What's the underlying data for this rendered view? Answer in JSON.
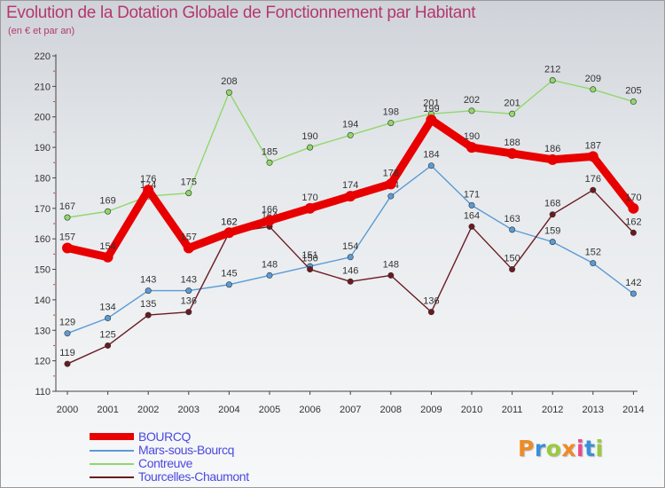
{
  "chart_data": {
    "type": "line",
    "title": "Evolution de la Dotation Globale de Fonctionnement par Habitant",
    "subtitle": "(en € et par an)",
    "xlabel": "",
    "ylabel": "",
    "categories": [
      "2000",
      "2001",
      "2002",
      "2003",
      "2004",
      "2005",
      "2006",
      "2007",
      "2008",
      "2009",
      "2010",
      "2011",
      "2012",
      "2013",
      "2014"
    ],
    "ylim": [
      110,
      220
    ],
    "yticks": [
      110,
      120,
      130,
      140,
      150,
      160,
      170,
      180,
      190,
      200,
      210,
      220
    ],
    "grid": false,
    "legend_position": "bottom-left",
    "series": [
      {
        "name": "BOURCQ",
        "color": "#e80000",
        "values": [
          157,
          154,
          176,
          157,
          162,
          166,
          170,
          174,
          178,
          199,
          190,
          188,
          186,
          187,
          170
        ]
      },
      {
        "name": "Mars-sous-Bourcq",
        "color": "#5b9bd5",
        "values": [
          129,
          134,
          143,
          143,
          145,
          148,
          151,
          154,
          174,
          184,
          171,
          163,
          159,
          152,
          142
        ]
      },
      {
        "name": "Contreuve",
        "color": "#8fd86a",
        "values": [
          167,
          169,
          174,
          175,
          208,
          185,
          190,
          194,
          198,
          201,
          202,
          201,
          212,
          209,
          205
        ]
      },
      {
        "name": "Tourcelles-Chaumont",
        "color": "#6b1a22",
        "values": [
          119,
          125,
          135,
          136,
          162,
          164,
          150,
          146,
          148,
          136,
          164,
          150,
          168,
          176,
          162
        ]
      }
    ]
  },
  "logo": {
    "letters": [
      "P",
      "r",
      "o",
      "x",
      "i",
      "t",
      "i"
    ],
    "colors": [
      "#f08a24",
      "#3a8fd8",
      "#9bcb3c",
      "#f08a24",
      "#e84a8a",
      "#3a8fd8",
      "#9bcb3c"
    ]
  }
}
